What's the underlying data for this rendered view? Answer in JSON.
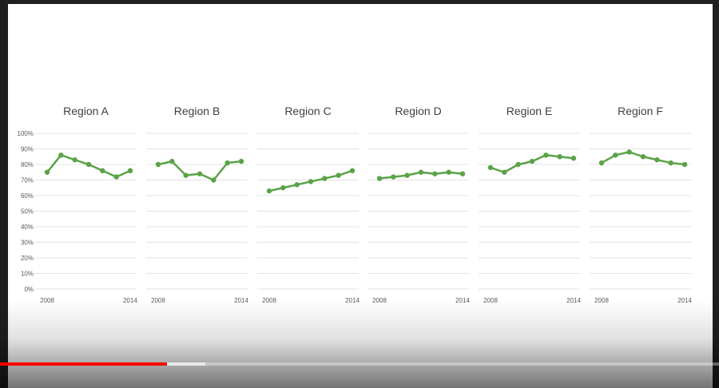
{
  "player": {
    "played_fraction": 0.232,
    "buffered_fraction": 0.285,
    "progress_color": "#ff0000"
  },
  "chart_data": {
    "type": "line",
    "line_color": "#5aa348",
    "y_tick_labels": [
      "100%",
      "90%",
      "80%",
      "70%",
      "60%",
      "50%",
      "40%",
      "30%",
      "20%",
      "10%",
      "0%"
    ],
    "ylim": [
      0,
      1
    ],
    "x_tick_labels": [
      "2008",
      "2014"
    ],
    "x": [
      2008,
      2009,
      2010,
      2011,
      2012,
      2013,
      2014
    ],
    "grid": true,
    "panels": [
      {
        "title": "Region A",
        "values": [
          0.75,
          0.86,
          0.83,
          0.8,
          0.76,
          0.72,
          0.76
        ]
      },
      {
        "title": "Region B",
        "values": [
          0.8,
          0.82,
          0.73,
          0.74,
          0.7,
          0.81,
          0.82
        ]
      },
      {
        "title": "Region C",
        "values": [
          0.63,
          0.65,
          0.67,
          0.69,
          0.71,
          0.73,
          0.76
        ]
      },
      {
        "title": "Region D",
        "values": [
          0.71,
          0.72,
          0.73,
          0.75,
          0.74,
          0.75,
          0.74
        ]
      },
      {
        "title": "Region E",
        "values": [
          0.78,
          0.75,
          0.8,
          0.82,
          0.86,
          0.85,
          0.84
        ]
      },
      {
        "title": "Region F",
        "values": [
          0.81,
          0.86,
          0.88,
          0.85,
          0.83,
          0.81,
          0.8
        ]
      }
    ]
  }
}
